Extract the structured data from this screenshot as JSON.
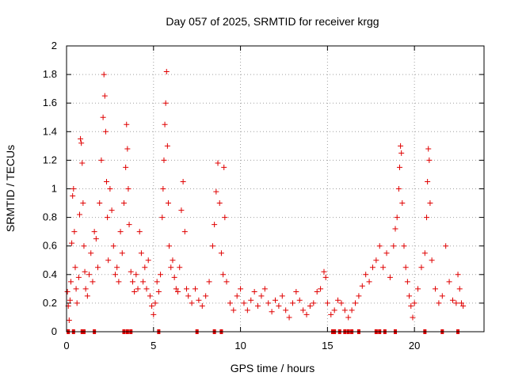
{
  "chart_data": {
    "type": "scatter",
    "title": "Day 057 of 2025, SRMTID for receiver krgg",
    "xlabel": "GPS time / hours",
    "ylabel": "SRMTID / TECUs",
    "xlim": [
      0,
      24
    ],
    "ylim": [
      0,
      2
    ],
    "xticks": [
      0,
      5,
      10,
      15,
      20
    ],
    "yticks": [
      0,
      0.2,
      0.4,
      0.6,
      0.8,
      1,
      1.2,
      1.4,
      1.6,
      1.8,
      2
    ],
    "grid": true,
    "marker": "plus",
    "color": "#e00000",
    "series": [
      {
        "name": "SRMTID",
        "points": [
          [
            0.05,
            0.28
          ],
          [
            0.1,
            0.18
          ],
          [
            0.15,
            0.08
          ],
          [
            0.2,
            0.22
          ],
          [
            0.25,
            0.35
          ],
          [
            0.3,
            0.62
          ],
          [
            0.35,
            0.95
          ],
          [
            0.4,
            1.0
          ],
          [
            0.45,
            0.7
          ],
          [
            0.5,
            0.45
          ],
          [
            0.55,
            0.3
          ],
          [
            0.6,
            0.2
          ],
          [
            0.7,
            0.38
          ],
          [
            0.75,
            0.82
          ],
          [
            0.8,
            1.35
          ],
          [
            0.85,
            1.32
          ],
          [
            0.9,
            1.18
          ],
          [
            0.95,
            0.9
          ],
          [
            1.0,
            0.6
          ],
          [
            1.05,
            0.42
          ],
          [
            1.1,
            0.3
          ],
          [
            1.2,
            0.25
          ],
          [
            1.3,
            0.4
          ],
          [
            1.4,
            0.55
          ],
          [
            1.5,
            0.35
          ],
          [
            1.6,
            0.7
          ],
          [
            1.7,
            0.65
          ],
          [
            1.8,
            0.45
          ],
          [
            1.9,
            0.9
          ],
          [
            2.0,
            1.2
          ],
          [
            2.1,
            1.5
          ],
          [
            2.15,
            1.8
          ],
          [
            2.2,
            1.65
          ],
          [
            2.25,
            1.4
          ],
          [
            2.3,
            1.05
          ],
          [
            2.35,
            0.8
          ],
          [
            2.4,
            0.5
          ],
          [
            2.5,
            1.0
          ],
          [
            2.6,
            0.85
          ],
          [
            2.7,
            0.6
          ],
          [
            2.8,
            0.4
          ],
          [
            2.9,
            0.45
          ],
          [
            3.0,
            0.35
          ],
          [
            3.1,
            0.7
          ],
          [
            3.2,
            0.55
          ],
          [
            3.3,
            0.9
          ],
          [
            3.4,
            1.15
          ],
          [
            3.45,
            1.45
          ],
          [
            3.5,
            1.28
          ],
          [
            3.55,
            1.0
          ],
          [
            3.6,
            0.75
          ],
          [
            3.7,
            0.42
          ],
          [
            3.8,
            0.35
          ],
          [
            3.9,
            0.28
          ],
          [
            4.0,
            0.4
          ],
          [
            4.1,
            0.3
          ],
          [
            4.2,
            0.7
          ],
          [
            4.3,
            0.55
          ],
          [
            4.4,
            0.35
          ],
          [
            4.5,
            0.45
          ],
          [
            4.6,
            0.3
          ],
          [
            4.7,
            0.5
          ],
          [
            4.8,
            0.25
          ],
          [
            4.9,
            0.18
          ],
          [
            5.0,
            0.12
          ],
          [
            5.1,
            0.2
          ],
          [
            5.2,
            0.35
          ],
          [
            5.3,
            0.28
          ],
          [
            5.4,
            0.4
          ],
          [
            5.5,
            0.8
          ],
          [
            5.55,
            1.0
          ],
          [
            5.6,
            1.2
          ],
          [
            5.65,
            1.45
          ],
          [
            5.7,
            1.6
          ],
          [
            5.75,
            1.82
          ],
          [
            5.8,
            1.3
          ],
          [
            5.85,
            0.9
          ],
          [
            5.9,
            0.6
          ],
          [
            6.0,
            0.45
          ],
          [
            6.1,
            0.5
          ],
          [
            6.2,
            0.38
          ],
          [
            6.3,
            0.3
          ],
          [
            6.4,
            0.28
          ],
          [
            6.5,
            0.45
          ],
          [
            6.6,
            0.85
          ],
          [
            6.7,
            1.05
          ],
          [
            6.8,
            0.7
          ],
          [
            6.9,
            0.3
          ],
          [
            7.0,
            0.25
          ],
          [
            7.2,
            0.2
          ],
          [
            7.4,
            0.3
          ],
          [
            7.6,
            0.22
          ],
          [
            7.8,
            0.18
          ],
          [
            8.0,
            0.25
          ],
          [
            8.2,
            0.35
          ],
          [
            8.4,
            0.6
          ],
          [
            8.5,
            0.75
          ],
          [
            8.6,
            0.98
          ],
          [
            8.7,
            1.18
          ],
          [
            8.8,
            0.9
          ],
          [
            8.9,
            0.55
          ],
          [
            9.0,
            0.4
          ],
          [
            9.05,
            1.15
          ],
          [
            9.1,
            0.8
          ],
          [
            9.2,
            0.35
          ],
          [
            9.4,
            0.2
          ],
          [
            9.6,
            0.15
          ],
          [
            9.8,
            0.25
          ],
          [
            10.0,
            0.3
          ],
          [
            10.2,
            0.2
          ],
          [
            10.4,
            0.15
          ],
          [
            10.6,
            0.22
          ],
          [
            10.8,
            0.28
          ],
          [
            11.0,
            0.18
          ],
          [
            11.2,
            0.25
          ],
          [
            11.4,
            0.3
          ],
          [
            11.6,
            0.2
          ],
          [
            11.8,
            0.14
          ],
          [
            12.0,
            0.22
          ],
          [
            12.2,
            0.18
          ],
          [
            12.4,
            0.25
          ],
          [
            12.6,
            0.15
          ],
          [
            12.8,
            0.1
          ],
          [
            13.0,
            0.2
          ],
          [
            13.2,
            0.28
          ],
          [
            13.4,
            0.22
          ],
          [
            13.6,
            0.15
          ],
          [
            13.8,
            0.12
          ],
          [
            14.0,
            0.18
          ],
          [
            14.2,
            0.2
          ],
          [
            14.4,
            0.28
          ],
          [
            14.6,
            0.3
          ],
          [
            14.8,
            0.42
          ],
          [
            14.9,
            0.38
          ],
          [
            15.0,
            0.2
          ],
          [
            15.2,
            0.12
          ],
          [
            15.4,
            0.15
          ],
          [
            15.6,
            0.22
          ],
          [
            15.8,
            0.2
          ],
          [
            16.0,
            0.15
          ],
          [
            16.2,
            0.1
          ],
          [
            16.4,
            0.15
          ],
          [
            16.6,
            0.2
          ],
          [
            16.8,
            0.25
          ],
          [
            17.0,
            0.32
          ],
          [
            17.2,
            0.4
          ],
          [
            17.4,
            0.35
          ],
          [
            17.6,
            0.45
          ],
          [
            17.8,
            0.5
          ],
          [
            18.0,
            0.6
          ],
          [
            18.2,
            0.45
          ],
          [
            18.4,
            0.55
          ],
          [
            18.6,
            0.38
          ],
          [
            18.8,
            0.6
          ],
          [
            18.9,
            0.72
          ],
          [
            19.0,
            0.8
          ],
          [
            19.1,
            1.0
          ],
          [
            19.15,
            1.15
          ],
          [
            19.2,
            1.3
          ],
          [
            19.25,
            1.25
          ],
          [
            19.3,
            0.9
          ],
          [
            19.4,
            0.6
          ],
          [
            19.5,
            0.45
          ],
          [
            19.6,
            0.35
          ],
          [
            19.7,
            0.25
          ],
          [
            19.8,
            0.18
          ],
          [
            19.9,
            0.1
          ],
          [
            20.0,
            0.2
          ],
          [
            20.2,
            0.3
          ],
          [
            20.4,
            0.45
          ],
          [
            20.6,
            0.55
          ],
          [
            20.7,
            0.8
          ],
          [
            20.75,
            1.05
          ],
          [
            20.8,
            1.28
          ],
          [
            20.85,
            1.2
          ],
          [
            20.9,
            0.9
          ],
          [
            21.0,
            0.5
          ],
          [
            21.2,
            0.3
          ],
          [
            21.4,
            0.2
          ],
          [
            21.6,
            0.25
          ],
          [
            21.8,
            0.6
          ],
          [
            22.0,
            0.35
          ],
          [
            22.2,
            0.22
          ],
          [
            22.4,
            0.2
          ],
          [
            22.5,
            0.4
          ],
          [
            22.6,
            0.3
          ],
          [
            22.7,
            0.2
          ],
          [
            22.8,
            0.18
          ]
        ]
      }
    ],
    "baseline_markers_x": [
      0.1,
      0.4,
      0.9,
      1.0,
      1.6,
      3.3,
      3.5,
      3.7,
      5.3,
      7.5,
      8.5,
      8.9,
      15.3,
      15.4,
      15.7,
      16.0,
      16.2,
      16.4,
      16.8,
      17.8,
      18.0,
      18.3,
      18.9,
      20.6,
      21.6,
      22.5
    ]
  }
}
